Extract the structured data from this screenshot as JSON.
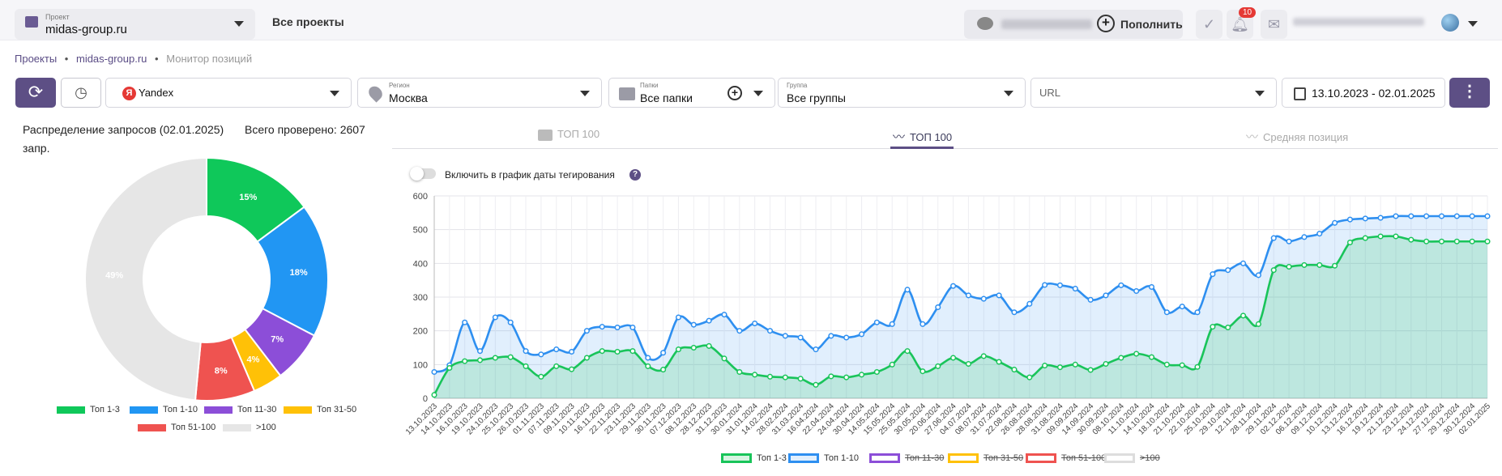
{
  "header": {
    "project_label": "Проект",
    "project_value": "midas-group.ru",
    "all_projects": "Все проекты",
    "topup": "Пополнить",
    "notif_count": "10"
  },
  "breadcrumb": {
    "items": [
      "Проекты",
      "midas-group.ru"
    ],
    "current": "Монитор позиций",
    "sep": "•"
  },
  "filters": {
    "engine": "Yandex",
    "region_label": "Регион",
    "region": "Москва",
    "folders_label": "Папки",
    "folders": "Все папки",
    "group_label": "Группа",
    "group": "Все группы",
    "url_placeholder": "URL",
    "date_range": "13.10.2023 - 02.01.2025"
  },
  "distribution": {
    "title": "Распределение запросов (02.01.2025)",
    "total": "Всего проверено: 2607",
    "unit": "запр.",
    "segments": [
      {
        "name": "Топ 1-3",
        "pct": 15,
        "label": "15%",
        "color": "#0fc85a"
      },
      {
        "name": "Топ 1-10",
        "pct": 18,
        "label": "18%",
        "color": "#2196f3"
      },
      {
        "name": "Топ 11-30",
        "pct": 7,
        "label": "7%",
        "color": "#8c4ed8"
      },
      {
        "name": "Топ 31-50",
        "pct": 4,
        "label": "4%",
        "color": "#ffc107"
      },
      {
        "name": "Топ 51-100",
        "pct": 8,
        "label": "8%",
        "color": "#ef5350"
      },
      {
        "name": ">100",
        "pct": 49,
        "label": "49%",
        "color": "#e6e6e6"
      }
    ]
  },
  "tabs": [
    "ТОП 100",
    "ТОП 100",
    "Средняя позиция"
  ],
  "toggle_label": "Включить в график даты тегирования",
  "chart_data": {
    "type": "area",
    "ylim": [
      0,
      600
    ],
    "yticks": [
      0,
      100,
      200,
      300,
      400,
      500,
      600
    ],
    "grid": true,
    "legend": "bottom",
    "x": [
      "13.10.2023",
      "14.10.2023",
      "16.10.2023",
      "19.10.2023",
      "24.10.2023",
      "25.10.2023",
      "26.10.2023",
      "01.11.2023",
      "07.11.2023",
      "09.11.2023",
      "10.11.2023",
      "16.11.2023",
      "22.11.2023",
      "23.11.2023",
      "29.11.2023",
      "30.11.2023",
      "07.12.2023",
      "08.12.2023",
      "28.12.2023",
      "31.12.2023",
      "30.01.2024",
      "31.01.2024",
      "14.02.2024",
      "28.02.2024",
      "31.03.2024",
      "16.04.2024",
      "22.04.2024",
      "24.04.2024",
      "30.04.2024",
      "14.05.2024",
      "15.05.2024",
      "25.05.2024",
      "30.05.2024",
      "20.06.2024",
      "27.06.2024",
      "04.07.2024",
      "08.07.2024",
      "31.07.2024",
      "22.08.2024",
      "26.08.2024",
      "28.08.2024",
      "31.08.2024",
      "09.09.2024",
      "14.09.2024",
      "30.09.2024",
      "08.10.2024",
      "11.10.2024",
      "14.10.2024",
      "18.10.2024",
      "21.10.2024",
      "22.10.2024",
      "25.10.2024",
      "29.10.2024",
      "12.11.2024",
      "28.11.2024",
      "29.11.2024",
      "02.12.2024",
      "06.12.2024",
      "09.12.2024",
      "10.12.2024",
      "13.12.2024",
      "16.12.2024",
      "19.12.2024",
      "21.12.2024",
      "23.12.2024",
      "24.12.2024",
      "27.12.2024",
      "29.12.2024",
      "30.12.2024",
      "02.01.2025"
    ],
    "series": [
      {
        "name": "Топ 1-3",
        "color": "#19c45a",
        "fill": "rgba(25,196,90,0.18)",
        "active": true,
        "values": [
          10,
          90,
          110,
          113,
          120,
          122,
          95,
          64,
          95,
          86,
          120,
          140,
          138,
          140,
          95,
          85,
          145,
          150,
          155,
          118,
          78,
          70,
          64,
          62,
          58,
          40,
          65,
          62,
          70,
          78,
          100,
          140,
          80,
          95,
          120,
          102,
          125,
          108,
          85,
          62,
          97,
          92,
          100,
          84,
          102,
          120,
          132,
          122,
          100,
          98,
          93,
          212,
          210,
          245,
          220,
          380,
          390,
          395,
          395,
          393,
          462,
          475,
          480,
          480,
          470,
          465,
          465,
          465,
          465,
          465
        ]
      },
      {
        "name": "Топ 1-10",
        "color": "#2e8ff0",
        "fill": "rgba(46,143,240,0.14)",
        "active": true,
        "values": [
          78,
          98,
          225,
          140,
          240,
          225,
          140,
          130,
          145,
          138,
          200,
          212,
          210,
          210,
          120,
          135,
          240,
          218,
          230,
          248,
          200,
          222,
          200,
          185,
          180,
          145,
          185,
          180,
          190,
          225,
          220,
          322,
          220,
          270,
          333,
          305,
          295,
          305,
          255,
          280,
          336,
          335,
          325,
          292,
          305,
          335,
          318,
          330,
          255,
          272,
          255,
          368,
          380,
          400,
          365,
          475,
          465,
          478,
          488,
          520,
          530,
          533,
          535,
          540,
          540,
          540,
          540,
          540,
          540,
          540
        ]
      },
      {
        "name": "Топ 11-30",
        "color": "#8c4ed8",
        "active": false
      },
      {
        "name": "Топ 31-50",
        "color": "#ffc107",
        "active": false
      },
      {
        "name": "Топ 51-100",
        "color": "#ef5350",
        "active": false
      },
      {
        "name": ">100",
        "color": "#dddddd",
        "active": false
      }
    ]
  }
}
